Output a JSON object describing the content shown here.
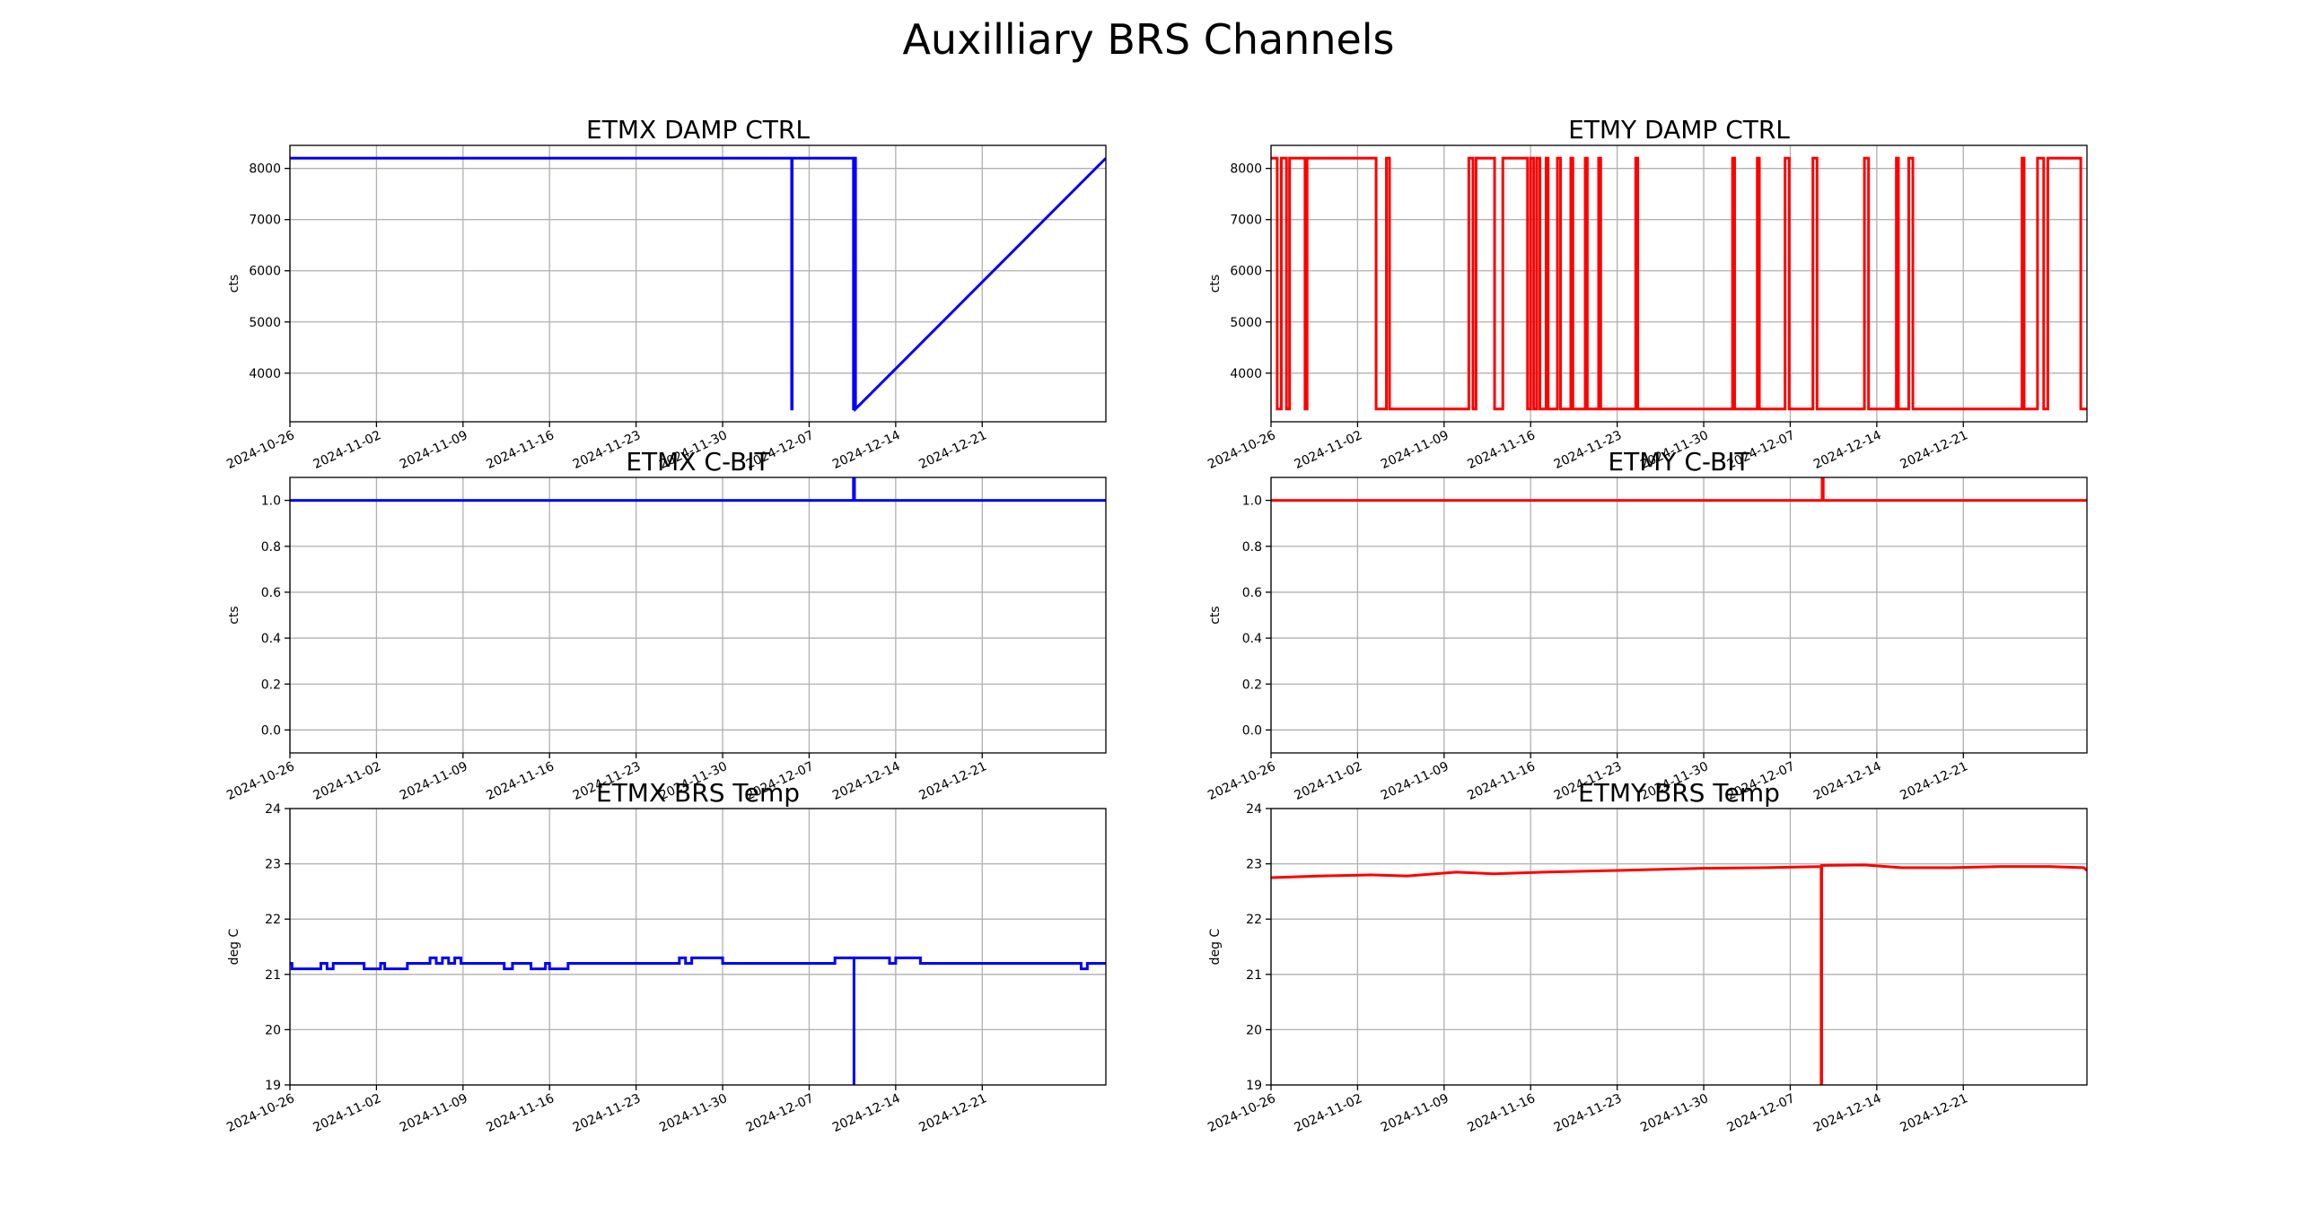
{
  "figure_title": "Auxilliary BRS Channels",
  "colors": {
    "etmx": "#0000ff",
    "etmy": "#ff0000",
    "grid": "#b0b0b0",
    "axes": "#000000"
  },
  "chart_data": [
    {
      "id": "etmx-damp",
      "type": "line",
      "title": "ETMX DAMP CTRL",
      "xlabel": "",
      "ylabel": "cts",
      "color": "#0000ff",
      "xlim": [
        "2024-10-26",
        "2024-12-31"
      ],
      "ylim": [
        3050,
        8450
      ],
      "yticks": [
        4000,
        5000,
        6000,
        7000,
        8000
      ],
      "yticklabels": [
        "4000",
        "5000",
        "6000",
        "7000",
        "8000"
      ],
      "xticks": [
        "2024-10-26",
        "2024-11-02",
        "2024-11-09",
        "2024-11-16",
        "2024-11-23",
        "2024-11-30",
        "2024-12-07",
        "2024-12-14",
        "2024-12-21"
      ],
      "grid": true,
      "x": [
        "2024-10-26",
        "2024-12-05 14:00",
        "2024-12-05 14:00",
        "2024-12-05 15:00",
        "2024-12-05 15:00",
        "2024-12-10 14:00",
        "2024-12-10 14:00",
        "2024-12-10 15:00",
        "2024-12-10 15:00",
        "2024-12-10 16:00",
        "2024-12-10 16:00",
        "2024-12-10 17:00",
        "2024-12-10 17:00",
        "2024-12-10 18:00",
        "2024-12-10 18:00",
        "2024-12-31"
      ],
      "y": [
        8200,
        8200,
        3300,
        3300,
        8200,
        8200,
        3300,
        3300,
        8200,
        8200,
        3300,
        3300,
        8200,
        8200,
        3300,
        8200
      ]
    },
    {
      "id": "etmy-damp",
      "type": "line",
      "title": "ETMY DAMP CTRL",
      "xlabel": "",
      "ylabel": "cts",
      "color": "#ff0000",
      "xlim": [
        "2024-10-26",
        "2024-12-31"
      ],
      "ylim": [
        3050,
        8450
      ],
      "yticks": [
        4000,
        5000,
        6000,
        7000,
        8000
      ],
      "yticklabels": [
        "4000",
        "5000",
        "6000",
        "7000",
        "8000"
      ],
      "xticks": [
        "2024-10-26",
        "2024-11-02",
        "2024-11-09",
        "2024-11-16",
        "2024-11-23",
        "2024-11-30",
        "2024-12-07",
        "2024-12-14",
        "2024-12-21"
      ],
      "grid": true,
      "x": [
        "2024-10-26",
        "2024-10-26 12:00",
        "2024-10-26 12:00",
        "2024-10-26 20:00",
        "2024-10-26 20:00",
        "2024-10-27 06:00",
        "2024-10-27 06:00",
        "2024-10-27 12:00",
        "2024-10-27 12:00",
        "2024-10-28 18:00",
        "2024-10-28 18:00",
        "2024-10-28 22:00",
        "2024-10-28 22:00",
        "2024-11-03 12:00",
        "2024-11-03 12:00",
        "2024-11-04 08:00",
        "2024-11-04 08:00",
        "2024-11-04 14:00",
        "2024-11-04 14:00",
        "2024-11-11",
        "2024-11-11",
        "2024-11-11 08:00",
        "2024-11-11 08:00",
        "2024-11-11 14:00",
        "2024-11-11 14:00",
        "2024-11-13 02:00",
        "2024-11-13 02:00",
        "2024-11-13 18:00",
        "2024-11-13 18:00",
        "2024-11-15 18:00",
        "2024-11-15 18:00",
        "2024-11-16",
        "2024-11-16",
        "2024-11-16 06:00",
        "2024-11-16 06:00",
        "2024-11-16 12:00",
        "2024-11-16 12:00",
        "2024-11-16 18:00",
        "2024-11-16 18:00",
        "2024-11-17 06:00",
        "2024-11-17 06:00",
        "2024-11-17 10:00",
        "2024-11-17 10:00",
        "2024-11-18 04:00",
        "2024-11-18 04:00",
        "2024-11-18 10:00",
        "2024-11-18 10:00",
        "2024-11-19 06:00",
        "2024-11-19 06:00",
        "2024-11-19 10:00",
        "2024-11-19 10:00",
        "2024-11-20 10:00",
        "2024-11-20 10:00",
        "2024-11-20 14:00",
        "2024-11-20 14:00",
        "2024-11-21 12:00",
        "2024-11-21 12:00",
        "2024-11-21 16:00",
        "2024-11-21 16:00",
        "2024-11-24 12:00",
        "2024-11-24 12:00",
        "2024-11-24 16:00",
        "2024-11-24 16:00",
        "2024-12-02 08:00",
        "2024-12-02 08:00",
        "2024-12-02 12:00",
        "2024-12-02 12:00",
        "2024-12-04 08:00",
        "2024-12-04 08:00",
        "2024-12-04 12:00",
        "2024-12-04 12:00",
        "2024-12-06 14:00",
        "2024-12-06 14:00",
        "2024-12-06 22:00",
        "2024-12-06 22:00",
        "2024-12-08 20:00",
        "2024-12-08 20:00",
        "2024-12-09 04:00",
        "2024-12-09 04:00",
        "2024-12-13",
        "2024-12-13",
        "2024-12-13 08:00",
        "2024-12-13 08:00",
        "2024-12-15 14:00",
        "2024-12-15 14:00",
        "2024-12-15 18:00",
        "2024-12-15 18:00",
        "2024-12-16 14:00",
        "2024-12-16 14:00",
        "2024-12-16 22:00",
        "2024-12-16 22:00",
        "2024-12-25 18:00",
        "2024-12-25 18:00",
        "2024-12-25 22:00",
        "2024-12-25 22:00",
        "2024-12-27",
        "2024-12-27",
        "2024-12-27 12:00",
        "2024-12-27 12:00",
        "2024-12-27 20:00",
        "2024-12-27 20:00",
        "2024-12-30 12:00",
        "2024-12-30 12:00",
        "2024-12-31"
      ],
      "y": [
        8200,
        8200,
        3300,
        3300,
        8200,
        8200,
        3300,
        3300,
        8200,
        8200,
        3300,
        3300,
        8200,
        8200,
        3300,
        3300,
        8200,
        8200,
        3300,
        3300,
        8200,
        8200,
        3300,
        3300,
        8200,
        8200,
        3300,
        3300,
        8200,
        8200,
        3300,
        3300,
        8200,
        8200,
        3300,
        3300,
        8200,
        8200,
        3300,
        3300,
        8200,
        8200,
        3300,
        3300,
        8200,
        8200,
        3300,
        3300,
        8200,
        8200,
        3300,
        3300,
        8200,
        8200,
        3300,
        3300,
        8200,
        8200,
        3300,
        3300,
        8200,
        8200,
        3300,
        3300,
        8200,
        8200,
        3300,
        3300,
        8200,
        8200,
        3300,
        3300,
        8200,
        8200,
        3300,
        3300,
        8200,
        8200,
        3300,
        3300,
        8200,
        8200,
        3300,
        3300,
        8200,
        8200,
        3300,
        3300,
        8200,
        8200,
        3300,
        3300,
        8200,
        8200,
        3300,
        3300,
        8200,
        8200,
        3300,
        3300,
        8200,
        8200,
        3300,
        3300
      ]
    },
    {
      "id": "etmx-cbit",
      "type": "line",
      "title": "ETMX C-BIT",
      "xlabel": "",
      "ylabel": "cts",
      "color": "#0000ff",
      "xlim": [
        "2024-10-26",
        "2024-12-31"
      ],
      "ylim": [
        -0.1,
        1.1
      ],
      "yticks": [
        0.0,
        0.2,
        0.4,
        0.6,
        0.8,
        1.0
      ],
      "yticklabels": [
        "0.0",
        "0.2",
        "0.4",
        "0.6",
        "0.8",
        "1.0"
      ],
      "xticks": [
        "2024-10-26",
        "2024-11-02",
        "2024-11-09",
        "2024-11-16",
        "2024-11-23",
        "2024-11-30",
        "2024-12-07",
        "2024-12-14",
        "2024-12-21"
      ],
      "grid": true,
      "x": [
        "2024-10-26",
        "2024-12-10 14:00",
        "2024-12-10 14:00",
        "2024-12-10 16:00",
        "2024-12-10 16:00",
        "2024-12-31"
      ],
      "y": [
        1.0,
        1.0,
        1.1,
        1.1,
        1.0,
        1.0
      ]
    },
    {
      "id": "etmy-cbit",
      "type": "line",
      "title": "ETMY C-BIT",
      "xlabel": "",
      "ylabel": "cts",
      "color": "#ff0000",
      "xlim": [
        "2024-10-26",
        "2024-12-31"
      ],
      "ylim": [
        -0.1,
        1.1
      ],
      "yticks": [
        0.0,
        0.2,
        0.4,
        0.6,
        0.8,
        1.0
      ],
      "yticklabels": [
        "0.0",
        "0.2",
        "0.4",
        "0.6",
        "0.8",
        "1.0"
      ],
      "xticks": [
        "2024-10-26",
        "2024-11-02",
        "2024-11-09",
        "2024-11-16",
        "2024-11-23",
        "2024-11-30",
        "2024-12-07",
        "2024-12-14",
        "2024-12-21"
      ],
      "grid": true,
      "x": [
        "2024-10-26",
        "2024-12-09 14:00",
        "2024-12-09 14:00",
        "2024-12-09 16:00",
        "2024-12-09 16:00",
        "2024-12-31"
      ],
      "y": [
        1.0,
        1.0,
        1.1,
        1.1,
        1.0,
        1.0
      ]
    },
    {
      "id": "etmx-temp",
      "type": "line",
      "title": "ETMX BRS Temp",
      "xlabel": "",
      "ylabel": "deg C",
      "color": "#0000ff",
      "xlim": [
        "2024-10-26",
        "2024-12-31"
      ],
      "ylim": [
        19,
        24
      ],
      "yticks": [
        19,
        20,
        21,
        22,
        23,
        24
      ],
      "yticklabels": [
        "19",
        "20",
        "21",
        "22",
        "23",
        "24"
      ],
      "xticks": [
        "2024-10-26",
        "2024-11-02",
        "2024-11-09",
        "2024-11-16",
        "2024-11-23",
        "2024-11-30",
        "2024-12-07",
        "2024-12-14",
        "2024-12-21"
      ],
      "grid": true,
      "x": [
        "2024-10-26",
        "2024-10-26 04:00",
        "2024-10-26 04:00",
        "2024-10-28 12:00",
        "2024-10-28 12:00",
        "2024-10-29",
        "2024-10-29",
        "2024-10-29 12:00",
        "2024-10-29 12:00",
        "2024-11-01",
        "2024-11-01",
        "2024-11-02 08:00",
        "2024-11-02 08:00",
        "2024-11-02 16:00",
        "2024-11-02 16:00",
        "2024-11-04 12:00",
        "2024-11-04 12:00",
        "2024-11-05",
        "2024-11-05",
        "2024-11-06 08:00",
        "2024-11-06 08:00",
        "2024-11-06 20:00",
        "2024-11-06 20:00",
        "2024-11-07 08:00",
        "2024-11-07 08:00",
        "2024-11-07 20:00",
        "2024-11-07 20:00",
        "2024-11-08 08:00",
        "2024-11-08 08:00",
        "2024-11-08 20:00",
        "2024-11-08 20:00",
        "2024-11-12 08:00",
        "2024-11-12 08:00",
        "2024-11-13",
        "2024-11-13",
        "2024-11-14 12:00",
        "2024-11-14 12:00",
        "2024-11-15 16:00",
        "2024-11-15 16:00",
        "2024-11-16",
        "2024-11-16",
        "2024-11-17 12:00",
        "2024-11-17 12:00",
        "2024-11-26 12:00",
        "2024-11-26 12:00",
        "2024-11-27",
        "2024-11-27",
        "2024-11-27 12:00",
        "2024-11-27 12:00",
        "2024-11-28",
        "2024-11-28",
        "2024-11-30",
        "2024-11-30",
        "2024-12-02",
        "2024-12-02",
        "2024-12-09 02:00",
        "2024-12-09 02:00",
        "2024-12-10 15:00",
        "2024-12-10 15:00",
        "2024-12-10 15:00",
        "2024-12-10 15:00",
        "2024-12-13",
        "2024-12-13",
        "2024-12-13 12:00",
        "2024-12-13 12:00",
        "2024-12-14",
        "2024-12-14",
        "2024-12-16",
        "2024-12-16",
        "2024-12-17 12:00",
        "2024-12-17 12:00",
        "2024-12-18",
        "2024-12-18",
        "2024-12-29",
        "2024-12-29",
        "2024-12-29 12:00",
        "2024-12-29 12:00",
        "2024-12-31"
      ],
      "y": [
        21.2,
        21.2,
        21.1,
        21.1,
        21.2,
        21.2,
        21.1,
        21.1,
        21.2,
        21.2,
        21.1,
        21.1,
        21.2,
        21.2,
        21.1,
        21.1,
        21.2,
        21.2,
        21.2,
        21.2,
        21.3,
        21.3,
        21.2,
        21.2,
        21.3,
        21.3,
        21.2,
        21.2,
        21.3,
        21.3,
        21.2,
        21.2,
        21.1,
        21.1,
        21.2,
        21.2,
        21.1,
        21.1,
        21.2,
        21.2,
        21.1,
        21.1,
        21.2,
        21.2,
        21.3,
        21.3,
        21.2,
        21.2,
        21.3,
        21.3,
        21.3,
        21.3,
        21.2,
        21.2,
        21.2,
        21.2,
        21.3,
        21.3,
        19.0,
        19.0,
        21.3,
        21.3,
        21.3,
        21.3,
        21.2,
        21.2,
        21.3,
        21.3,
        21.2,
        21.2,
        21.2,
        21.2,
        21.2,
        21.2,
        21.1,
        21.1,
        21.2,
        21.2
      ]
    },
    {
      "id": "etmy-temp",
      "type": "line",
      "title": "ETMY BRS Temp",
      "xlabel": "",
      "ylabel": "deg C",
      "color": "#ff0000",
      "xlim": [
        "2024-10-26",
        "2024-12-31"
      ],
      "ylim": [
        19,
        24
      ],
      "yticks": [
        19,
        20,
        21,
        22,
        23,
        24
      ],
      "yticklabels": [
        "19",
        "20",
        "21",
        "22",
        "23",
        "24"
      ],
      "xticks": [
        "2024-10-26",
        "2024-11-02",
        "2024-11-09",
        "2024-11-16",
        "2024-11-23",
        "2024-11-30",
        "2024-12-07",
        "2024-12-14",
        "2024-12-21"
      ],
      "grid": true,
      "x": [
        "2024-10-26",
        "2024-10-30",
        "2024-11-03",
        "2024-11-06",
        "2024-11-10",
        "2024-11-13",
        "2024-11-17",
        "2024-11-23",
        "2024-11-30",
        "2024-12-05",
        "2024-12-09 12:00",
        "2024-12-09 12:00",
        "2024-12-09 13:00",
        "2024-12-09 13:00",
        "2024-12-13",
        "2024-12-16",
        "2024-12-20",
        "2024-12-24",
        "2024-12-28",
        "2024-12-30 18:00",
        "2024-12-31"
      ],
      "y": [
        22.75,
        22.78,
        22.8,
        22.78,
        22.85,
        22.82,
        22.85,
        22.88,
        22.92,
        22.93,
        22.95,
        19.0,
        19.0,
        22.97,
        22.98,
        22.93,
        22.93,
        22.95,
        22.95,
        22.93,
        22.88
      ]
    }
  ]
}
